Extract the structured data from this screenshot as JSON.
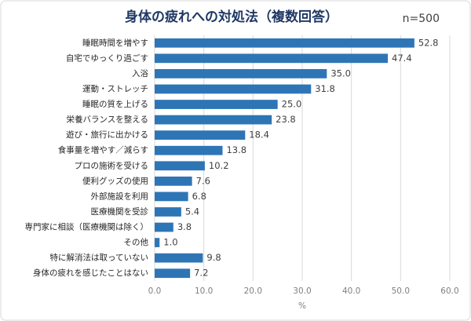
{
  "chart_data": {
    "type": "hbar",
    "title": "身体の疲れへの対処法（複数回答）",
    "subtitle": "n=500",
    "x_label": "%",
    "categories": [
      "睡眠時間を増やす",
      "自宅でゆっくり過ごす",
      "入浴",
      "運動・ストレッチ",
      "睡眠の質を上げる",
      "栄養バランスを整える",
      "遊び・旅行に出かける",
      "食事量を増やす／減らす",
      "プロの施術を受ける",
      "便利グッズの使用",
      "外部施設を利用",
      "医療機関を受診",
      "専門家に相談（医療機関は除く）",
      "その他",
      "特に解消法は取っていない",
      "身体の疲れを感じたことはない"
    ],
    "values": [
      52.8,
      47.4,
      35.0,
      31.8,
      25.0,
      23.8,
      18.4,
      13.8,
      10.2,
      7.6,
      6.8,
      5.4,
      3.8,
      1.0,
      9.8,
      7.2
    ],
    "value_labels": [
      "52.8",
      "47.4",
      "35.0",
      "31.8",
      "25.0",
      "23.8",
      "18.4",
      "13.8",
      "10.2",
      "7.6",
      "6.8",
      "5.4",
      "3.8",
      "1.0",
      "9.8",
      "7.2"
    ],
    "color": "#2e75b6",
    "xlim": [
      0,
      60
    ],
    "xticks": [
      {
        "value": 0,
        "label": "0.0"
      },
      {
        "value": 10,
        "label": "10.0"
      },
      {
        "value": 20,
        "label": "20.0"
      },
      {
        "value": 30,
        "label": "30.0"
      },
      {
        "value": 40,
        "label": "40.0"
      },
      {
        "value": 50,
        "label": "50.0"
      },
      {
        "value": 60,
        "label": "60.0"
      }
    ],
    "grid": true
  }
}
